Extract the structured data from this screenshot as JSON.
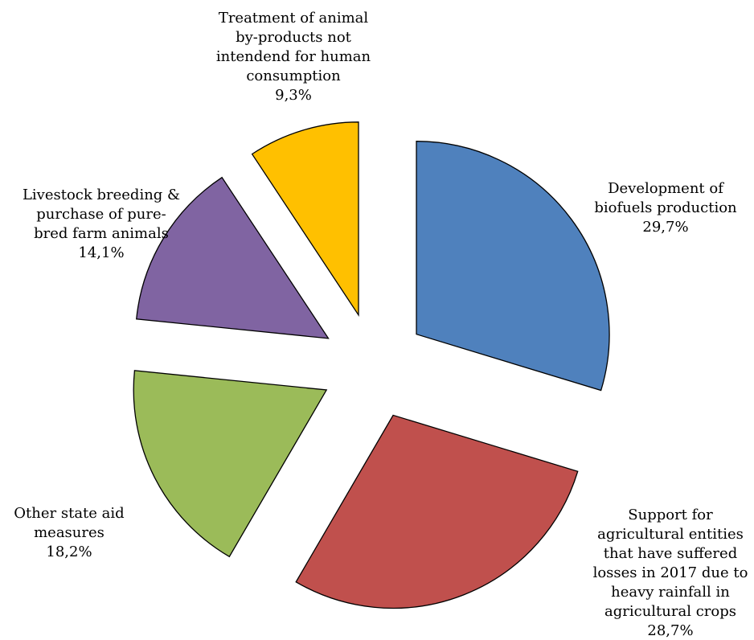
{
  "chart_data": {
    "type": "pie",
    "exploded": true,
    "slices": [
      {
        "label_lines": [
          "Development of",
          "biofuels production"
        ],
        "value_label": "29,7%",
        "value": 29.7,
        "color": "#4F81BD"
      },
      {
        "label_lines": [
          "Support for",
          "agricultural entities",
          "that have suffered",
          "losses in 2017 due to",
          "heavy rainfall in",
          "agricultural crops"
        ],
        "value_label": "28,7%",
        "value": 28.7,
        "color": "#C0504D"
      },
      {
        "label_lines": [
          "Other state aid",
          "measures"
        ],
        "value_label": "18,2%",
        "value": 18.2,
        "color": "#9BBB59"
      },
      {
        "label_lines": [
          "Livestock breeding &",
          "purchase of pure-",
          "bred farm animals"
        ],
        "value_label": "14,1%",
        "value": 14.1,
        "color": "#8064A2"
      },
      {
        "label_lines": [
          "Treatment of animal",
          "by-products not",
          "intendend for human",
          "consumption"
        ],
        "value_label": "9,3%",
        "value": 9.3,
        "color": "#FFC000"
      }
    ]
  }
}
